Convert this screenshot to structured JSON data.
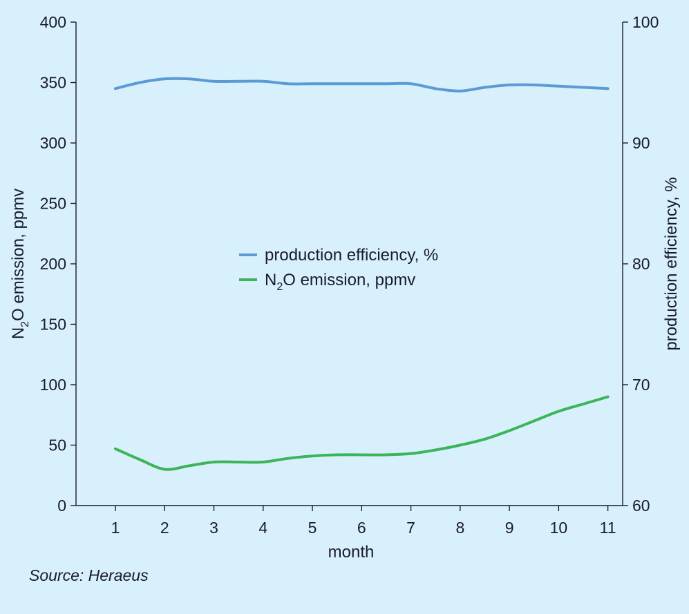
{
  "chart_data": {
    "type": "line",
    "x": [
      1,
      2,
      3,
      4,
      5,
      6,
      7,
      8,
      9,
      10,
      11
    ],
    "xlabel": "month",
    "xlim": [
      0.2,
      11.3
    ],
    "y_left": {
      "label_main": "N",
      "label_sub": "2",
      "label_rest": "O emission, ppmv",
      "lim": [
        0,
        400
      ],
      "ticks": [
        0,
        50,
        100,
        150,
        200,
        250,
        300,
        350,
        400
      ]
    },
    "y_right": {
      "label": "production efficiency, %",
      "lim": [
        60,
        100
      ],
      "ticks": [
        60,
        70,
        80,
        90,
        100
      ]
    },
    "series": [
      {
        "name": "production efficiency, %",
        "axis": "right",
        "color": "#5b9bd5",
        "x": [
          1,
          1.5,
          2,
          2.5,
          3,
          3.5,
          4,
          4.5,
          5,
          5.5,
          6,
          6.5,
          7,
          7.5,
          8,
          8.5,
          9,
          9.5,
          10,
          10.5,
          11
        ],
        "values": [
          94.5,
          95.0,
          95.3,
          95.3,
          95.1,
          95.1,
          95.1,
          94.9,
          94.9,
          94.9,
          94.9,
          94.9,
          94.9,
          94.5,
          94.3,
          94.6,
          94.8,
          94.8,
          94.7,
          94.6,
          94.5
        ]
      },
      {
        "name_main": "N",
        "name_sub": "2",
        "name_rest": "O emission, ppmv",
        "axis": "left",
        "color": "#3cb55a",
        "x": [
          1,
          1.5,
          2,
          2.5,
          3,
          3.5,
          4,
          4.5,
          5,
          5.5,
          6,
          6.5,
          7,
          7.5,
          8,
          8.5,
          9,
          9.5,
          10,
          10.5,
          11
        ],
        "values": [
          47,
          38,
          30,
          33,
          36,
          36,
          36,
          39,
          41,
          42,
          42,
          42,
          43,
          46,
          50,
          55,
          62,
          70,
          78,
          84,
          90
        ]
      }
    ],
    "source": "Source: Heraeus"
  }
}
